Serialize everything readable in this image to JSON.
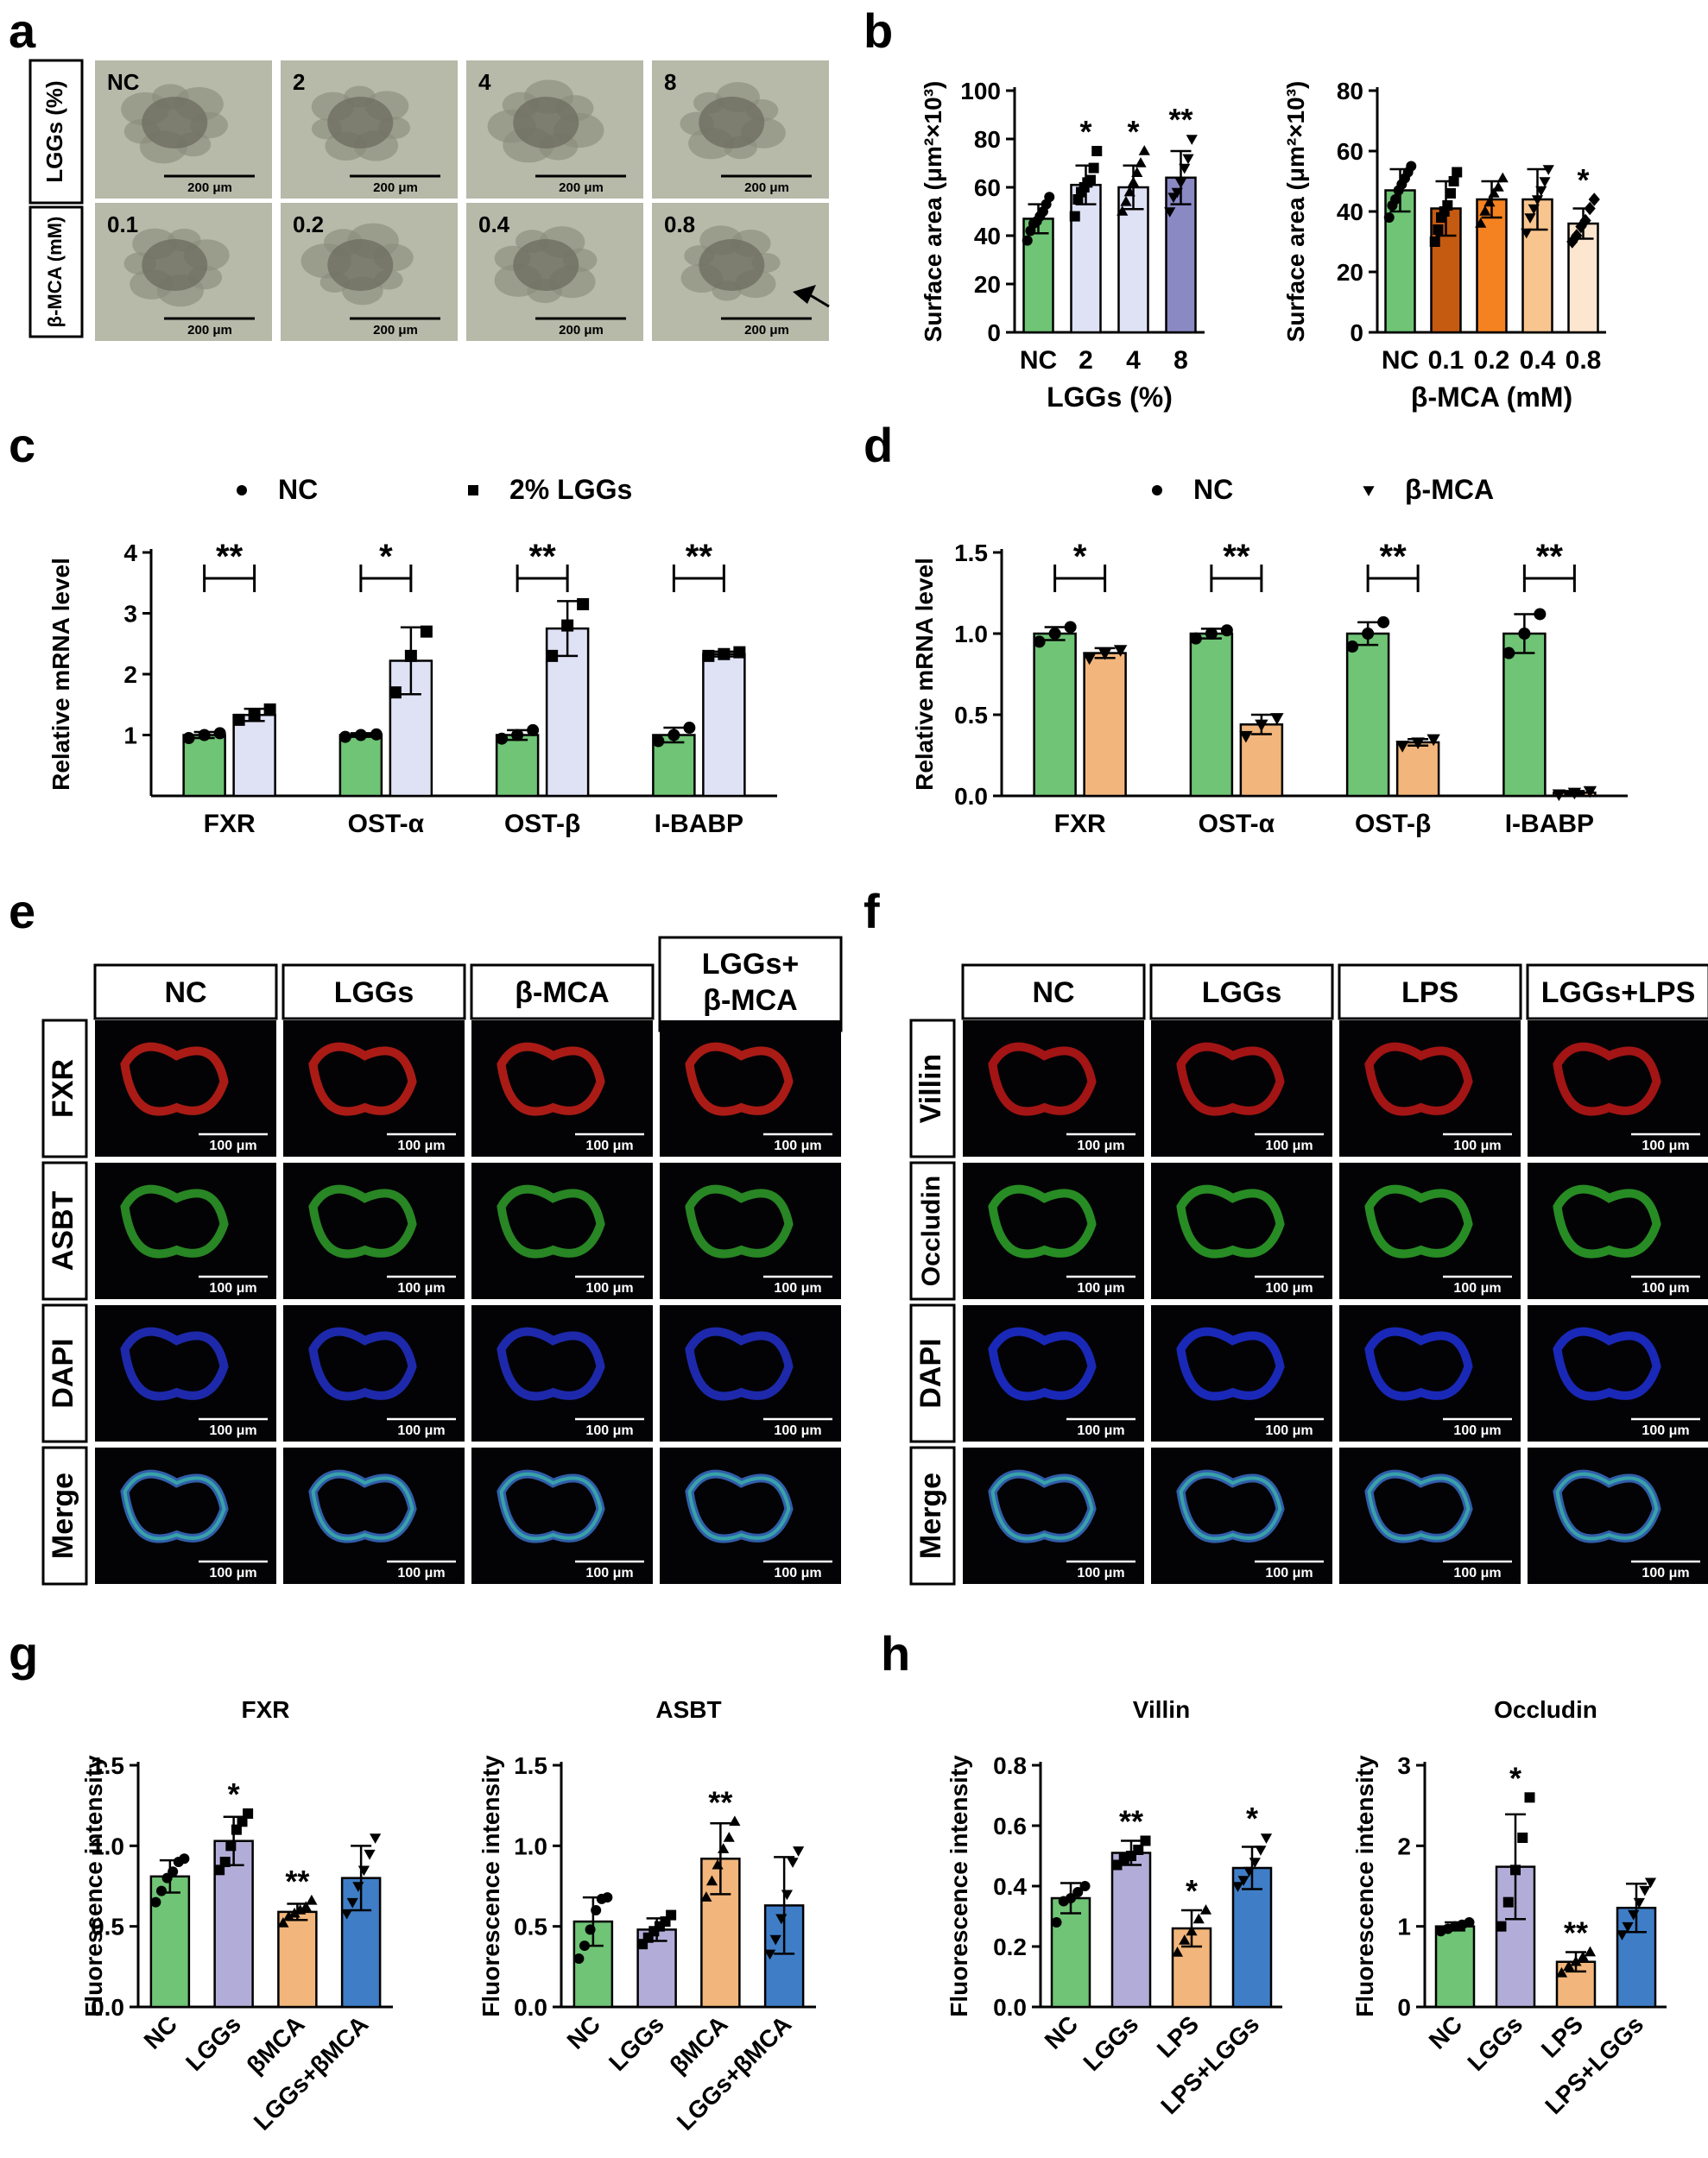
{
  "panel_letters": [
    "a",
    "b",
    "c",
    "d",
    "e",
    "f",
    "g",
    "h"
  ],
  "panel_a": {
    "row_labels": [
      "LGGs (%)",
      "β-MCA (mM)"
    ],
    "row1_tiles": [
      "NC",
      "2",
      "4",
      "8"
    ],
    "row2_tiles": [
      "0.1",
      "0.2",
      "0.4",
      "0.8"
    ],
    "scale_text": "200 μm"
  },
  "panel_e": {
    "col_headers": [
      "NC",
      "LGGs",
      "β-MCA",
      "LGGs+\nβ-MCA"
    ],
    "row_labels": [
      "FXR",
      "ASBT",
      "DAPI",
      "Merge"
    ],
    "scale_text": "100 μm"
  },
  "panel_f": {
    "col_headers": [
      "NC",
      "LGGs",
      "LPS",
      "LGGs+LPS"
    ],
    "row_labels": [
      "Villin",
      "Occludin",
      "DAPI",
      "Merge"
    ],
    "scale_text": "100 μm"
  },
  "colors": {
    "green": "#6fc475",
    "lavender": "#dfe2f5",
    "purple": "#8a89c4",
    "orange": "#f2b67c",
    "rust": "#c55a11",
    "bright_orange": "#f58220",
    "light_orange": "#f8c58f",
    "pale_peach": "#fde6cf",
    "blue": "#3f7ec7",
    "grey_purple": "#b2add8"
  },
  "chart_data": [
    {
      "id": "b1",
      "type": "bar",
      "categories": [
        "NC",
        "2",
        "4",
        "8"
      ],
      "values": [
        47,
        61,
        60,
        64
      ],
      "errors": [
        6,
        8,
        9,
        11
      ],
      "points": [
        [
          38,
          42,
          45,
          46,
          48,
          50,
          53,
          56
        ],
        [
          48,
          55,
          58,
          60,
          62,
          63,
          68,
          75
        ],
        [
          50,
          54,
          58,
          62,
          66,
          70,
          75
        ],
        [
          50,
          56,
          58,
          62,
          68,
          72,
          80
        ]
      ],
      "stars": [
        "",
        "*",
        "*",
        "**"
      ],
      "xlabel": "LGGs (%)",
      "ylabel": "Surface area (μm²×10³)",
      "ylim": [
        0,
        100
      ],
      "yticks": [
        0,
        20,
        40,
        60,
        80,
        100
      ]
    },
    {
      "id": "b2",
      "type": "bar",
      "categories": [
        "NC",
        "0.1",
        "0.2",
        "0.4",
        "0.8"
      ],
      "values": [
        47,
        41,
        44,
        44,
        36
      ],
      "errors": [
        7,
        9,
        6,
        10,
        5
      ],
      "points": [
        [
          38,
          42,
          44,
          47,
          49,
          51,
          53,
          55
        ],
        [
          30,
          34,
          38,
          40,
          42,
          46,
          50,
          53
        ],
        [
          36,
          40,
          43,
          46,
          48,
          51
        ],
        [
          33,
          38,
          41,
          44,
          47,
          50,
          54
        ],
        [
          30,
          32,
          35,
          37,
          41,
          44
        ]
      ],
      "stars": [
        "",
        "",
        "",
        "",
        "*"
      ],
      "xlabel": "β-MCA (mM)",
      "ylabel": "Surface area (μm²×10³)",
      "ylim": [
        0,
        80
      ],
      "yticks": [
        0,
        20,
        40,
        60,
        80
      ]
    },
    {
      "id": "c",
      "type": "bar",
      "categories": [
        "FXR",
        "OST-α",
        "OST-β",
        "I-BABP"
      ],
      "series": [
        {
          "name": "NC",
          "values": [
            1.0,
            1.0,
            1.0,
            1.0
          ],
          "errors": [
            0.05,
            0.03,
            0.08,
            0.12
          ],
          "points": [
            [
              0.95,
              1.0,
              1.03
            ],
            [
              0.97,
              1.0,
              1.01
            ],
            [
              0.94,
              1.0,
              1.08
            ],
            [
              0.9,
              1.0,
              1.12
            ]
          ]
        },
        {
          "name": "2% LGGs",
          "values": [
            1.33,
            2.22,
            2.75,
            2.33
          ],
          "errors": [
            0.1,
            0.55,
            0.45,
            0.04
          ],
          "points": [
            [
              1.25,
              1.33,
              1.42
            ],
            [
              1.7,
              2.3,
              2.7
            ],
            [
              2.3,
              2.8,
              3.15
            ],
            [
              2.3,
              2.33,
              2.36
            ]
          ]
        }
      ],
      "stars": [
        "**",
        "*",
        "**",
        "**"
      ],
      "ylabel": "Relative mRNA level",
      "ylim": [
        0,
        4
      ],
      "yticks": [
        1,
        2,
        3,
        4
      ]
    },
    {
      "id": "d",
      "type": "bar",
      "categories": [
        "FXR",
        "OST-α",
        "OST-β",
        "I-BABP"
      ],
      "series": [
        {
          "name": "NC",
          "values": [
            1.0,
            1.0,
            1.0,
            1.0
          ],
          "errors": [
            0.04,
            0.03,
            0.07,
            0.12
          ],
          "points": [
            [
              0.95,
              1.0,
              1.04
            ],
            [
              0.97,
              1.0,
              1.02
            ],
            [
              0.92,
              1.0,
              1.07
            ],
            [
              0.88,
              1.0,
              1.12
            ]
          ]
        },
        {
          "name": "β-MCA",
          "values": [
            0.88,
            0.44,
            0.33,
            0.02
          ],
          "errors": [
            0.03,
            0.06,
            0.02,
            0.01
          ],
          "points": [
            [
              0.85,
              0.88,
              0.9
            ],
            [
              0.37,
              0.44,
              0.48
            ],
            [
              0.31,
              0.33,
              0.35
            ],
            [
              0.01,
              0.02,
              0.03
            ]
          ]
        }
      ],
      "stars": [
        "*",
        "**",
        "**",
        "**"
      ],
      "ylabel": "Relative mRNA level",
      "ylim": [
        0,
        1.5
      ],
      "yticks": [
        0.0,
        0.5,
        1.0,
        1.5
      ]
    },
    {
      "id": "g1",
      "type": "bar",
      "title": "FXR",
      "categories": [
        "NC",
        "LGGs",
        "βMCA",
        "LGGs+βMCA"
      ],
      "values": [
        0.81,
        1.03,
        0.59,
        0.8
      ],
      "errors": [
        0.1,
        0.15,
        0.05,
        0.2
      ],
      "points": [
        [
          0.65,
          0.72,
          0.8,
          0.84,
          0.9,
          0.92
        ],
        [
          0.85,
          0.9,
          1.0,
          1.1,
          1.15,
          1.2
        ],
        [
          0.52,
          0.56,
          0.58,
          0.6,
          0.62,
          0.66
        ],
        [
          0.58,
          0.65,
          0.75,
          0.85,
          0.95,
          1.05
        ]
      ],
      "stars": [
        "",
        "*",
        "**",
        ""
      ],
      "ylabel": "Fluorescence intensity",
      "ylim": [
        0,
        1.5
      ],
      "yticks": [
        0.0,
        0.5,
        1.0,
        1.5
      ]
    },
    {
      "id": "g2",
      "type": "bar",
      "title": "ASBT",
      "categories": [
        "NC",
        "LGGs",
        "βMCA",
        "LGGs+βMCA"
      ],
      "values": [
        0.53,
        0.48,
        0.92,
        0.63
      ],
      "errors": [
        0.15,
        0.07,
        0.22,
        0.3
      ],
      "points": [
        [
          0.3,
          0.38,
          0.48,
          0.6,
          0.67,
          0.68
        ],
        [
          0.39,
          0.43,
          0.47,
          0.5,
          0.53,
          0.57
        ],
        [
          0.68,
          0.78,
          0.88,
          0.98,
          1.05,
          1.15
        ],
        [
          0.33,
          0.42,
          0.55,
          0.7,
          0.9,
          0.97
        ]
      ],
      "stars": [
        "",
        "",
        "**",
        ""
      ],
      "ylabel": "Fluorescence intensity",
      "ylim": [
        0,
        1.5
      ],
      "yticks": [
        0.0,
        0.5,
        1.0,
        1.5
      ]
    },
    {
      "id": "h1",
      "type": "bar",
      "title": "Villin",
      "categories": [
        "NC",
        "LGGs",
        "LPS",
        "LPS+LGGs"
      ],
      "values": [
        0.36,
        0.51,
        0.26,
        0.46
      ],
      "errors": [
        0.05,
        0.04,
        0.06,
        0.07
      ],
      "points": [
        [
          0.28,
          0.35,
          0.36,
          0.38,
          0.4
        ],
        [
          0.47,
          0.49,
          0.5,
          0.52,
          0.55
        ],
        [
          0.18,
          0.22,
          0.25,
          0.29,
          0.32
        ],
        [
          0.4,
          0.42,
          0.45,
          0.48,
          0.52,
          0.56
        ]
      ],
      "stars": [
        "",
        "**",
        "*",
        "*"
      ],
      "ylabel": "Fluorescence intensity",
      "ylim": [
        0,
        0.8
      ],
      "yticks": [
        0.0,
        0.2,
        0.4,
        0.6,
        0.8
      ]
    },
    {
      "id": "h2",
      "type": "bar",
      "title": "Occludin",
      "categories": [
        "NC",
        "LGGs",
        "LPS",
        "LPS+LGGs"
      ],
      "values": [
        1.0,
        1.74,
        0.56,
        1.23
      ],
      "errors": [
        0.05,
        0.65,
        0.12,
        0.3
      ],
      "points": [
        [
          0.94,
          0.97,
          1.0,
          1.02,
          1.05
        ],
        [
          1.0,
          1.3,
          1.7,
          2.1,
          2.6
        ],
        [
          0.42,
          0.5,
          0.56,
          0.62,
          0.68
        ],
        [
          0.9,
          1.0,
          1.15,
          1.3,
          1.45,
          1.55
        ]
      ],
      "stars": [
        "",
        "*",
        "**",
        ""
      ],
      "ylabel": "Fluorescence intensity",
      "ylim": [
        0,
        3
      ],
      "yticks": [
        0,
        1,
        2,
        3
      ]
    }
  ]
}
